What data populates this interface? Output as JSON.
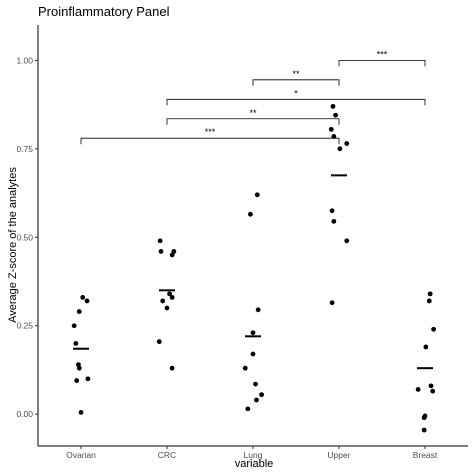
{
  "chart_data": {
    "type": "scatter",
    "title": "Proinflammatory Panel",
    "xlabel": "variable",
    "ylabel": "Average Z-score of the analytes",
    "categories": [
      "Ovarian",
      "CRC",
      "Lung",
      "Upper",
      "Breast"
    ],
    "ylim": [
      -0.09,
      1.1
    ],
    "yticks": [
      0.0,
      0.25,
      0.5,
      0.75,
      1.0
    ],
    "ytick_labels": [
      "0.00",
      "0.25",
      "0.50",
      "0.75",
      "1.00"
    ],
    "grid": false,
    "legend": "none",
    "points": [
      {
        "category": "Ovarian",
        "jitter": 0.02,
        "y": 0.33
      },
      {
        "category": "Ovarian",
        "jitter": 0.07,
        "y": 0.32
      },
      {
        "category": "Ovarian",
        "jitter": -0.02,
        "y": 0.29
      },
      {
        "category": "Ovarian",
        "jitter": -0.08,
        "y": 0.25
      },
      {
        "category": "Ovarian",
        "jitter": -0.06,
        "y": 0.2
      },
      {
        "category": "Ovarian",
        "jitter": -0.03,
        "y": 0.14
      },
      {
        "category": "Ovarian",
        "jitter": -0.02,
        "y": 0.13
      },
      {
        "category": "Ovarian",
        "jitter": 0.08,
        "y": 0.1
      },
      {
        "category": "Ovarian",
        "jitter": -0.05,
        "y": 0.095
      },
      {
        "category": "Ovarian",
        "jitter": 0.0,
        "y": 0.005
      },
      {
        "category": "CRC",
        "jitter": -0.08,
        "y": 0.49
      },
      {
        "category": "CRC",
        "jitter": 0.08,
        "y": 0.46
      },
      {
        "category": "CRC",
        "jitter": -0.07,
        "y": 0.46
      },
      {
        "category": "CRC",
        "jitter": 0.06,
        "y": 0.45
      },
      {
        "category": "CRC",
        "jitter": 0.03,
        "y": 0.34
      },
      {
        "category": "CRC",
        "jitter": 0.06,
        "y": 0.33
      },
      {
        "category": "CRC",
        "jitter": -0.05,
        "y": 0.32
      },
      {
        "category": "CRC",
        "jitter": 0.0,
        "y": 0.3
      },
      {
        "category": "CRC",
        "jitter": -0.09,
        "y": 0.205
      },
      {
        "category": "CRC",
        "jitter": 0.06,
        "y": 0.13
      },
      {
        "category": "Lung",
        "jitter": 0.05,
        "y": 0.62
      },
      {
        "category": "Lung",
        "jitter": -0.03,
        "y": 0.565
      },
      {
        "category": "Lung",
        "jitter": 0.06,
        "y": 0.295
      },
      {
        "category": "Lung",
        "jitter": 0.0,
        "y": 0.23
      },
      {
        "category": "Lung",
        "jitter": 0.0,
        "y": 0.17
      },
      {
        "category": "Lung",
        "jitter": -0.09,
        "y": 0.13
      },
      {
        "category": "Lung",
        "jitter": 0.03,
        "y": 0.085
      },
      {
        "category": "Lung",
        "jitter": 0.1,
        "y": 0.055
      },
      {
        "category": "Lung",
        "jitter": 0.04,
        "y": 0.04
      },
      {
        "category": "Lung",
        "jitter": -0.06,
        "y": 0.015
      },
      {
        "category": "Upper",
        "jitter": -0.07,
        "y": 0.87
      },
      {
        "category": "Upper",
        "jitter": -0.04,
        "y": 0.845
      },
      {
        "category": "Upper",
        "jitter": -0.09,
        "y": 0.805
      },
      {
        "category": "Upper",
        "jitter": -0.06,
        "y": 0.785
      },
      {
        "category": "Upper",
        "jitter": 0.09,
        "y": 0.765
      },
      {
        "category": "Upper",
        "jitter": 0.01,
        "y": 0.75
      },
      {
        "category": "Upper",
        "jitter": -0.08,
        "y": 0.575
      },
      {
        "category": "Upper",
        "jitter": -0.06,
        "y": 0.545
      },
      {
        "category": "Upper",
        "jitter": 0.09,
        "y": 0.49
      },
      {
        "category": "Upper",
        "jitter": -0.08,
        "y": 0.315
      },
      {
        "category": "Breast",
        "jitter": 0.06,
        "y": 0.34
      },
      {
        "category": "Breast",
        "jitter": 0.05,
        "y": 0.32
      },
      {
        "category": "Breast",
        "jitter": 0.1,
        "y": 0.24
      },
      {
        "category": "Breast",
        "jitter": 0.01,
        "y": 0.19
      },
      {
        "category": "Breast",
        "jitter": 0.07,
        "y": 0.08
      },
      {
        "category": "Breast",
        "jitter": -0.08,
        "y": 0.07
      },
      {
        "category": "Breast",
        "jitter": 0.09,
        "y": 0.065
      },
      {
        "category": "Breast",
        "jitter": 0.0,
        "y": -0.005
      },
      {
        "category": "Breast",
        "jitter": -0.01,
        "y": -0.01
      },
      {
        "category": "Breast",
        "jitter": -0.01,
        "y": -0.045
      }
    ],
    "means": [
      {
        "category": "Ovarian",
        "y": 0.185
      },
      {
        "category": "CRC",
        "y": 0.35
      },
      {
        "category": "Lung",
        "y": 0.22
      },
      {
        "category": "Upper",
        "y": 0.675
      },
      {
        "category": "Breast",
        "y": 0.13
      }
    ],
    "significance": [
      {
        "from": "Upper",
        "to": "Breast",
        "y": 1.0,
        "label": "***"
      },
      {
        "from": "Lung",
        "to": "Upper",
        "y": 0.945,
        "label": "**"
      },
      {
        "from": "CRC",
        "to": "Breast",
        "y": 0.89,
        "label": "*"
      },
      {
        "from": "CRC",
        "to": "Upper",
        "y": 0.835,
        "label": "**"
      },
      {
        "from": "Ovarian",
        "to": "Upper",
        "y": 0.78,
        "label": "***"
      }
    ]
  }
}
